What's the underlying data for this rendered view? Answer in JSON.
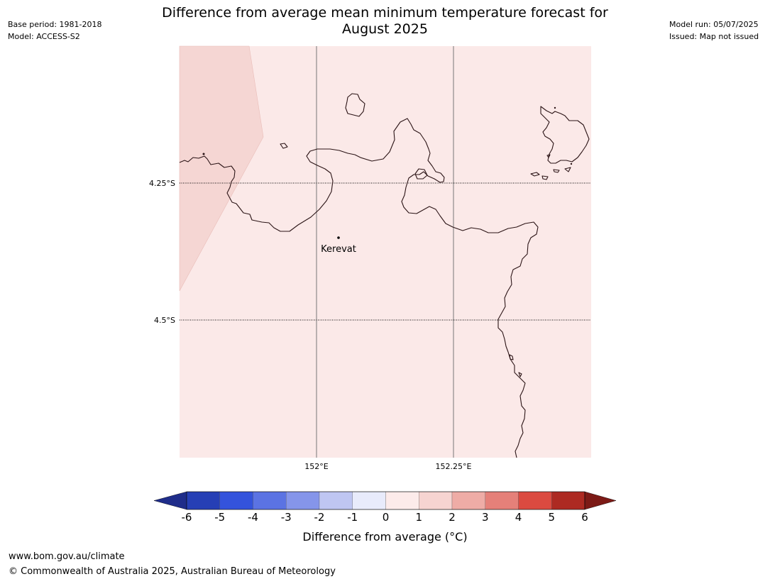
{
  "title_line1": "Difference from average mean minimum temperature forecast for",
  "title_line2": "August 2025",
  "meta_left": {
    "base_period": "Base period: 1981-2018",
    "model": "Model: ACCESS-S2"
  },
  "meta_right": {
    "model_run": "Model run: 05/07/2025",
    "issued": "Issued: Map not issued"
  },
  "map": {
    "place_name": "Kerevat",
    "lat_labels": [
      "4.25°S",
      "4.5°S"
    ],
    "lon_labels": [
      "152°E",
      "152.25°E"
    ],
    "background_color": "#fbe9e8",
    "warm_region_color": "#f5d6d3",
    "anomaly_background": "0 to 1",
    "anomaly_region_west": "1 to 2"
  },
  "colorbar": {
    "label": "Difference from average (°C)",
    "ticks": [
      "-6",
      "-5",
      "-4",
      "-3",
      "-2",
      "-1",
      "0",
      "1",
      "2",
      "3",
      "4",
      "5",
      "6"
    ],
    "colors": [
      "#1f2d8a",
      "#263fb5",
      "#3453dc",
      "#5b73e3",
      "#8595ea",
      "#bfc6f2",
      "#e8ebfb",
      "#fcebea",
      "#f6d4d1",
      "#eeaca6",
      "#e58079",
      "#db4a40",
      "#ad2a22",
      "#7c1a16"
    ]
  },
  "footer": {
    "url": "www.bom.gov.au/climate",
    "copyright": "© Commonwealth of Australia 2025, Australian Bureau of Meteorology"
  }
}
